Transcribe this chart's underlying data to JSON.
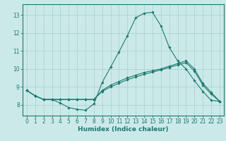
{
  "xlabel": "Humidex (Indice chaleur)",
  "ylabel": "",
  "background_color": "#cce9e9",
  "grid_color": "#aad4d4",
  "line_color": "#1a7a6e",
  "spine_color": "#1a7a6e",
  "xlim": [
    -0.5,
    23.5
  ],
  "ylim": [
    7.4,
    13.6
  ],
  "xticks": [
    0,
    1,
    2,
    3,
    4,
    5,
    6,
    7,
    8,
    9,
    10,
    11,
    12,
    13,
    14,
    15,
    16,
    17,
    18,
    19,
    20,
    21,
    22,
    23
  ],
  "yticks": [
    8,
    9,
    10,
    11,
    12,
    13
  ],
  "line1_x": [
    0,
    1,
    2,
    3,
    4,
    5,
    6,
    7,
    8,
    9,
    10,
    11,
    12,
    13,
    14,
    15,
    16,
    17,
    18,
    19,
    20,
    21,
    22,
    23
  ],
  "line1_y": [
    8.8,
    8.5,
    8.3,
    8.3,
    8.1,
    7.85,
    7.75,
    7.7,
    8.05,
    9.25,
    10.1,
    10.95,
    11.85,
    12.85,
    13.1,
    13.15,
    12.4,
    11.2,
    10.45,
    10.0,
    9.35,
    8.75,
    8.25,
    8.2
  ],
  "line2_x": [
    0,
    1,
    2,
    3,
    4,
    5,
    6,
    7,
    8,
    9,
    10,
    11,
    12,
    13,
    14,
    15,
    16,
    17,
    18,
    19,
    20,
    21,
    22,
    23
  ],
  "line2_y": [
    8.8,
    8.5,
    8.3,
    8.3,
    8.3,
    8.3,
    8.3,
    8.3,
    8.3,
    8.8,
    9.1,
    9.3,
    9.5,
    9.65,
    9.8,
    9.9,
    10.0,
    10.15,
    10.3,
    10.45,
    10.0,
    9.2,
    8.7,
    8.2
  ],
  "line3_x": [
    0,
    1,
    2,
    3,
    4,
    5,
    6,
    7,
    8,
    9,
    10,
    11,
    12,
    13,
    14,
    15,
    16,
    17,
    18,
    19,
    20,
    21,
    22,
    23
  ],
  "line3_y": [
    8.8,
    8.5,
    8.3,
    8.3,
    8.3,
    8.3,
    8.3,
    8.3,
    8.3,
    8.75,
    9.0,
    9.2,
    9.4,
    9.55,
    9.7,
    9.82,
    9.95,
    10.08,
    10.22,
    10.35,
    9.88,
    9.1,
    8.6,
    8.2
  ]
}
